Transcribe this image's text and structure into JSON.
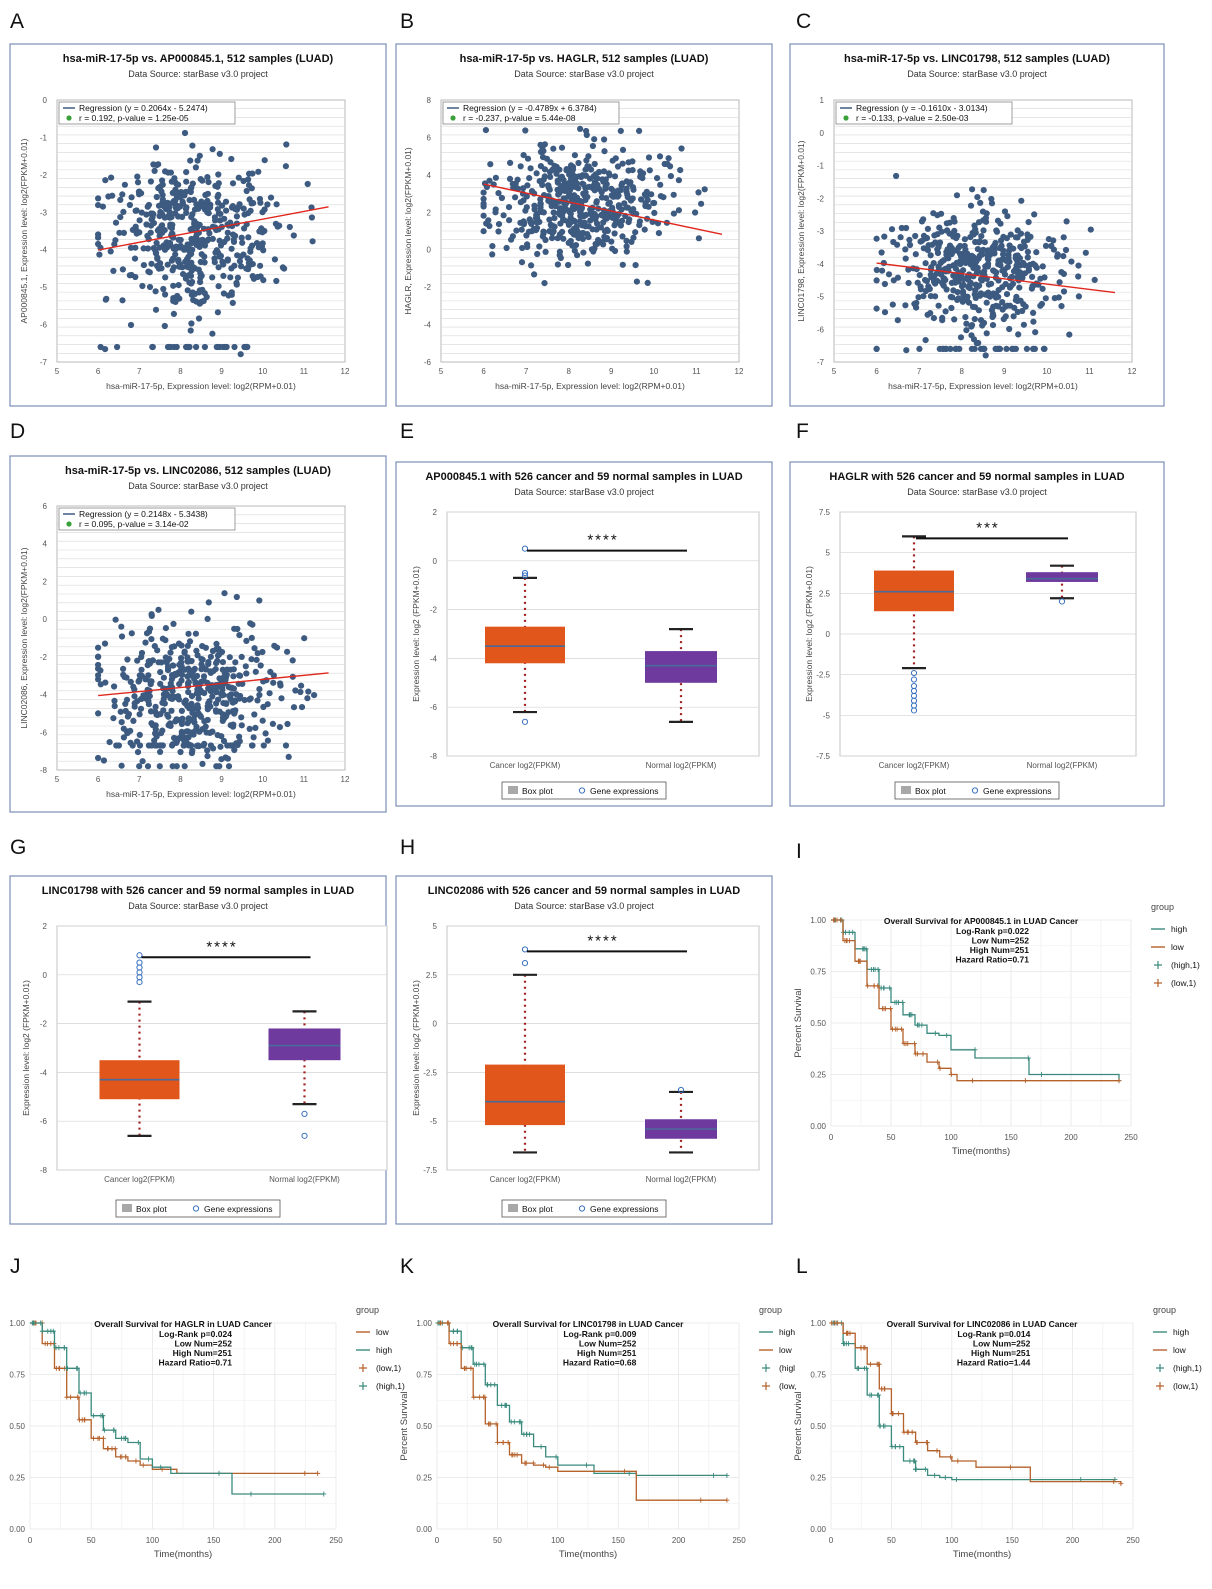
{
  "figure": {
    "panels": [
      {
        "letter": "A",
        "kind": "scatter",
        "title": "hsa-miR-17-5p vs. AP000845.1, 512 samples (LUAD)",
        "subtitle": "Data Source: starBase v3.0 project",
        "xlabel": "hsa-miR-17-5p, Expression level: log2(RPM+0.01)",
        "ylabel": "AP000845.1, Expression level: log2(FPKM+0.01)",
        "legend": [
          "Regression (y = 0.2064x - 5.2474)",
          "r = 0.192, p-value = 1.25e-05"
        ]
      },
      {
        "letter": "B",
        "kind": "scatter",
        "title": "hsa-miR-17-5p vs. HAGLR, 512 samples (LUAD)",
        "subtitle": "Data Source: starBase v3.0 project",
        "xlabel": "hsa-miR-17-5p, Expression level: log2(RPM+0.01)",
        "ylabel": "HAGLR, Expression level: log2(FPKM+0.01)",
        "legend": [
          "Regression (y = -0.4789x + 6.3784)",
          "r = -0.237, p-value = 5.44e-08"
        ]
      },
      {
        "letter": "C",
        "kind": "scatter",
        "title": "hsa-miR-17-5p vs. LINC01798, 512 samples (LUAD)",
        "subtitle": "Data Source: starBase v3.0 project",
        "xlabel": "hsa-miR-17-5p, Expression level: log2(RPM+0.01)",
        "ylabel": "LINC01798, Expression level: log2(FPKM+0.01)",
        "legend": [
          "Regression (y = -0.1610x - 3.0134)",
          "r = -0.133, p-value = 2.50e-03"
        ]
      },
      {
        "letter": "D",
        "kind": "scatter",
        "title": "hsa-miR-17-5p vs. LINC02086, 512 samples (LUAD)",
        "subtitle": "Data Source: starBase v3.0 project",
        "xlabel": "hsa-miR-17-5p, Expression level: log2(RPM+0.01)",
        "ylabel": "LINC02086, Expression level: log2(FPKM+0.01)",
        "legend": [
          "Regression (y = 0.2148x - 5.3438)",
          "r = 0.095, p-value = 3.14e-02"
        ]
      },
      {
        "letter": "E",
        "kind": "box",
        "title": "AP000845.1 with 526 cancer and 59 normal samples in LUAD",
        "subtitle": "Data Source: starBase v3.0 project",
        "ylabel": "Expression level: log2 (FPKM+0.01)",
        "stars": "****",
        "legend": [
          "Box plot",
          "Gene expressions"
        ]
      },
      {
        "letter": "F",
        "kind": "box",
        "title": "HAGLR with 526 cancer and 59 normal samples in LUAD",
        "subtitle": "Data Source: starBase v3.0 project",
        "ylabel": "Expression level: log2 (FPKM+0.01)",
        "stars": "***",
        "legend": [
          "Box plot",
          "Gene expressions"
        ]
      },
      {
        "letter": "G",
        "kind": "box",
        "title": "LINC01798 with 526 cancer and 59 normal samples in LUAD",
        "subtitle": "Data Source: starBase v3.0 project",
        "ylabel": "Expression level: log2 (FPKM+0.01)",
        "stars": "****",
        "legend": [
          "Box plot",
          "Gene expressions"
        ]
      },
      {
        "letter": "H",
        "kind": "box",
        "title": "LINC02086 with 526 cancer and 59 normal samples in LUAD",
        "subtitle": "Data Source: starBase v3.0 project",
        "ylabel": "Expression level: log2 (FPKM+0.01)",
        "stars": "****",
        "legend": [
          "Box plot",
          "Gene expressions"
        ]
      },
      {
        "letter": "I",
        "kind": "km",
        "title": "Overall Survival for AP000845.1 in LUAD Cancer",
        "stats": [
          "Log-Rank p=0.022",
          "Low Num=252",
          "High Num=251",
          "Hazard Ratio=0.71"
        ],
        "xlabel": "Time(months)",
        "ylabel": "Percent Survival",
        "group_title": "group",
        "legend": [
          "high",
          "low",
          "(high,1)",
          "(low,1)"
        ]
      },
      {
        "letter": "J",
        "kind": "km",
        "title": "Overall Survival for HAGLR in LUAD Cancer",
        "stats": [
          "Log-Rank p=0.024",
          "Low Num=252",
          "High Num=251",
          "Hazard Ratio=0.71"
        ],
        "xlabel": "Time(months)",
        "ylabel": "Percent Survival",
        "group_title": "group",
        "legend": [
          "low",
          "high",
          "(low,1)",
          "(high,1)"
        ]
      },
      {
        "letter": "K",
        "kind": "km",
        "title": "Overall Survival for LINC01798 in LUAD Cancer",
        "stats": [
          "Log-Rank p=0.009",
          "Low Num=252",
          "High Num=251",
          "Hazard Ratio=0.68"
        ],
        "xlabel": "Time(months)",
        "ylabel": "Percent Survival",
        "group_title": "group",
        "legend": [
          "high",
          "low",
          "(higl",
          "(low,"
        ]
      },
      {
        "letter": "L",
        "kind": "km",
        "title": "Overall Survival for LINC02086 in LUAD Cancer",
        "stats": [
          "Log-Rank p=0.014",
          "Low Num=252",
          "High Num=251",
          "Hazard Ratio=1.44"
        ],
        "xlabel": "Time(months)",
        "ylabel": "Percent Survival",
        "group_title": "group",
        "legend": [
          "high",
          "low",
          "(high,1)",
          "(low,1)"
        ]
      }
    ]
  },
  "chart_data": [
    {
      "panel": "A",
      "type": "scatter",
      "n": 512,
      "xlim": [
        5,
        12
      ],
      "ylim": [
        -7,
        0
      ],
      "xticks": [
        "5",
        "6",
        "7",
        "8",
        "9",
        "10",
        "11",
        "12"
      ],
      "yticks": [
        "0",
        "-1",
        "-2",
        "-3",
        "-4",
        "-5",
        "-6",
        "-7"
      ],
      "x_center": 8.3,
      "x_sd": 1.05,
      "y_center": -3.5,
      "y_sd": 1.0,
      "floor": -6.6,
      "regression": {
        "slope": 0.2064,
        "intercept": -5.2474,
        "x_range": [
          6,
          11.6
        ]
      }
    },
    {
      "panel": "B",
      "type": "scatter",
      "n": 512,
      "xlim": [
        5,
        12
      ],
      "ylim": [
        -6,
        8
      ],
      "xticks": [
        "5",
        "6",
        "7",
        "8",
        "9",
        "10",
        "11",
        "12"
      ],
      "yticks": [
        "8",
        "6",
        "4",
        "2",
        "0",
        "-2",
        "-4",
        "-6"
      ],
      "x_center": 8.3,
      "x_sd": 1.05,
      "y_center": 2.5,
      "y_sd": 1.6,
      "floor": null,
      "regression": {
        "slope": -0.4789,
        "intercept": 6.3784,
        "x_range": [
          6,
          11.6
        ]
      }
    },
    {
      "panel": "C",
      "type": "scatter",
      "n": 512,
      "xlim": [
        5,
        12
      ],
      "ylim": [
        -7,
        1
      ],
      "xticks": [
        "5",
        "6",
        "7",
        "8",
        "9",
        "10",
        "11",
        "12"
      ],
      "yticks": [
        "1",
        "0",
        "-1",
        "-2",
        "-3",
        "-4",
        "-5",
        "-6",
        "-7"
      ],
      "x_center": 8.3,
      "x_sd": 1.05,
      "y_center": -4.2,
      "y_sd": 0.9,
      "floor": -6.6,
      "regression": {
        "slope": -0.161,
        "intercept": -3.0134,
        "x_range": [
          6,
          11.6
        ]
      }
    },
    {
      "panel": "D",
      "type": "scatter",
      "n": 512,
      "xlim": [
        5,
        12
      ],
      "ylim": [
        -8,
        6
      ],
      "xticks": [
        "5",
        "6",
        "7",
        "8",
        "9",
        "10",
        "11",
        "12"
      ],
      "yticks": [
        "6",
        "4",
        "2",
        "0",
        "-2",
        "-4",
        "-6",
        "-8"
      ],
      "x_center": 8.3,
      "x_sd": 1.05,
      "y_center": -4.0,
      "y_sd": 1.8,
      "floor": -6.7,
      "regression": {
        "slope": 0.2148,
        "intercept": -5.3438,
        "x_range": [
          6,
          11.6
        ]
      }
    },
    {
      "panel": "E",
      "type": "box",
      "ylim": [
        -8,
        2
      ],
      "yticks": [
        "2",
        "0",
        "-2",
        "-4",
        "-6",
        "-8"
      ],
      "categories": [
        "Cancer log2(FPKM)",
        "Normal log2(FPKM)"
      ],
      "boxes": [
        {
          "q1": -4.2,
          "median": -3.5,
          "q3": -2.7,
          "whisker_low": -6.2,
          "whisker_high": -0.7,
          "outliers": [
            0.5,
            -0.5,
            -0.6,
            -6.6
          ]
        },
        {
          "q1": -5.0,
          "median": -4.3,
          "q3": -3.7,
          "whisker_low": -6.6,
          "whisker_high": -2.8,
          "outliers": []
        }
      ]
    },
    {
      "panel": "F",
      "type": "box",
      "ylim": [
        -7.5,
        7.5
      ],
      "yticks": [
        "7.5",
        "5",
        "2.5",
        "0",
        "-2.5",
        "-5",
        "-7.5"
      ],
      "categories": [
        "Cancer log2(FPKM)",
        "Normal log2(FPKM)"
      ],
      "boxes": [
        {
          "q1": 1.4,
          "median": 2.6,
          "q3": 3.9,
          "whisker_low": -2.1,
          "whisker_high": 6.0,
          "outliers": [
            -2.4,
            -2.8,
            -3.2,
            -3.5,
            -3.8,
            -4.1,
            -4.4,
            -4.7
          ]
        },
        {
          "q1": 3.2,
          "median": 3.4,
          "q3": 3.8,
          "whisker_low": 2.2,
          "whisker_high": 4.2,
          "outliers": [
            2.0
          ]
        }
      ]
    },
    {
      "panel": "G",
      "type": "box",
      "ylim": [
        -8,
        2
      ],
      "yticks": [
        "2",
        "0",
        "-2",
        "-4",
        "-6",
        "-8"
      ],
      "categories": [
        "Cancer log2(FPKM)",
        "Normal log2(FPKM)"
      ],
      "boxes": [
        {
          "q1": -5.1,
          "median": -4.3,
          "q3": -3.5,
          "whisker_low": -6.6,
          "whisker_high": -1.1,
          "outliers": [
            0.8,
            0.5,
            0.3,
            0.1,
            -0.1,
            -0.3
          ]
        },
        {
          "q1": -3.5,
          "median": -2.9,
          "q3": -2.2,
          "whisker_low": -5.3,
          "whisker_high": -1.5,
          "outliers": [
            -5.7,
            -6.6
          ]
        }
      ]
    },
    {
      "panel": "H",
      "type": "box",
      "ylim": [
        -7.5,
        5
      ],
      "yticks": [
        "5",
        "2.5",
        "0",
        "-2.5",
        "-5",
        "-7.5"
      ],
      "categories": [
        "Cancer log2(FPKM)",
        "Normal log2(FPKM)"
      ],
      "boxes": [
        {
          "q1": -5.2,
          "median": -4.0,
          "q3": -2.1,
          "whisker_low": -6.6,
          "whisker_high": 2.5,
          "outliers": [
            3.8,
            3.1
          ]
        },
        {
          "q1": -5.9,
          "median": -5.4,
          "q3": -4.9,
          "whisker_low": -6.6,
          "whisker_high": -3.5,
          "outliers": [
            -3.4
          ]
        }
      ]
    },
    {
      "panel": "I",
      "type": "line",
      "xlim": [
        0,
        250
      ],
      "ylim": [
        0,
        1
      ],
      "xticks": [
        "0",
        "50",
        "100",
        "150",
        "200",
        "250"
      ],
      "yticks": [
        "1.00",
        "0.75",
        "0.50",
        "0.25",
        "0.00"
      ],
      "series": [
        {
          "name": "high",
          "color": "#3a8a7e",
          "x": [
            0,
            10,
            20,
            30,
            40,
            50,
            60,
            70,
            80,
            90,
            100,
            120,
            165,
            240
          ],
          "y": [
            1.0,
            0.94,
            0.86,
            0.76,
            0.67,
            0.6,
            0.54,
            0.49,
            0.45,
            0.44,
            0.37,
            0.33,
            0.25,
            0.22
          ]
        },
        {
          "name": "low",
          "color": "#b5612a",
          "x": [
            0,
            10,
            20,
            30,
            40,
            50,
            60,
            70,
            80,
            90,
            100,
            105,
            120,
            240
          ],
          "y": [
            1.0,
            0.9,
            0.8,
            0.68,
            0.57,
            0.47,
            0.4,
            0.35,
            0.31,
            0.28,
            0.25,
            0.22,
            0.22,
            0.22
          ]
        }
      ]
    },
    {
      "panel": "J",
      "type": "line",
      "xlim": [
        0,
        250
      ],
      "ylim": [
        0,
        1
      ],
      "xticks": [
        "0",
        "50",
        "100",
        "150",
        "200",
        "250"
      ],
      "yticks": [
        "1.00",
        "0.75",
        "0.50",
        "0.25",
        "0.00"
      ],
      "series": [
        {
          "name": "low",
          "color": "#b5612a",
          "x": [
            0,
            10,
            20,
            30,
            40,
            50,
            60,
            70,
            80,
            90,
            100,
            120,
            235
          ],
          "y": [
            1.0,
            0.9,
            0.78,
            0.64,
            0.53,
            0.44,
            0.39,
            0.35,
            0.33,
            0.31,
            0.29,
            0.27,
            0.27
          ]
        },
        {
          "name": "high",
          "color": "#3a8a7e",
          "x": [
            0,
            10,
            20,
            30,
            40,
            50,
            60,
            70,
            80,
            90,
            100,
            115,
            165,
            240
          ],
          "y": [
            1.0,
            0.96,
            0.88,
            0.78,
            0.66,
            0.55,
            0.48,
            0.44,
            0.42,
            0.34,
            0.3,
            0.27,
            0.17,
            0.17
          ]
        }
      ]
    },
    {
      "panel": "K",
      "type": "line",
      "xlim": [
        0,
        250
      ],
      "ylim": [
        0,
        1
      ],
      "xticks": [
        "0",
        "50",
        "100",
        "150",
        "200",
        "250"
      ],
      "yticks": [
        "1.00",
        "0.75",
        "0.50",
        "0.25",
        "0.00"
      ],
      "series": [
        {
          "name": "high",
          "color": "#3a8a7e",
          "x": [
            0,
            10,
            20,
            30,
            40,
            50,
            60,
            70,
            80,
            90,
            100,
            130,
            165,
            240
          ],
          "y": [
            1.0,
            0.96,
            0.88,
            0.8,
            0.7,
            0.6,
            0.52,
            0.46,
            0.4,
            0.35,
            0.31,
            0.27,
            0.26,
            0.26
          ]
        },
        {
          "name": "low",
          "color": "#b5612a",
          "x": [
            0,
            10,
            20,
            30,
            40,
            50,
            60,
            70,
            80,
            90,
            100,
            165,
            240
          ],
          "y": [
            1.0,
            0.9,
            0.78,
            0.64,
            0.51,
            0.42,
            0.36,
            0.32,
            0.31,
            0.3,
            0.28,
            0.14,
            0.14
          ]
        }
      ]
    },
    {
      "panel": "L",
      "type": "line",
      "xlim": [
        0,
        250
      ],
      "ylim": [
        0,
        1
      ],
      "xticks": [
        "0",
        "50",
        "100",
        "150",
        "200",
        "250"
      ],
      "yticks": [
        "1.00",
        "0.75",
        "0.50",
        "0.25",
        "0.00"
      ],
      "series": [
        {
          "name": "high",
          "color": "#3a8a7e",
          "x": [
            0,
            10,
            20,
            30,
            40,
            50,
            60,
            70,
            80,
            90,
            100,
            120,
            235
          ],
          "y": [
            1.0,
            0.9,
            0.78,
            0.65,
            0.5,
            0.4,
            0.33,
            0.29,
            0.26,
            0.25,
            0.24,
            0.24,
            0.24
          ]
        },
        {
          "name": "low",
          "color": "#b5612a",
          "x": [
            0,
            10,
            20,
            30,
            40,
            50,
            60,
            70,
            80,
            90,
            100,
            120,
            165,
            240
          ],
          "y": [
            1.0,
            0.95,
            0.88,
            0.8,
            0.68,
            0.56,
            0.47,
            0.42,
            0.38,
            0.35,
            0.33,
            0.3,
            0.23,
            0.22
          ]
        }
      ]
    }
  ]
}
